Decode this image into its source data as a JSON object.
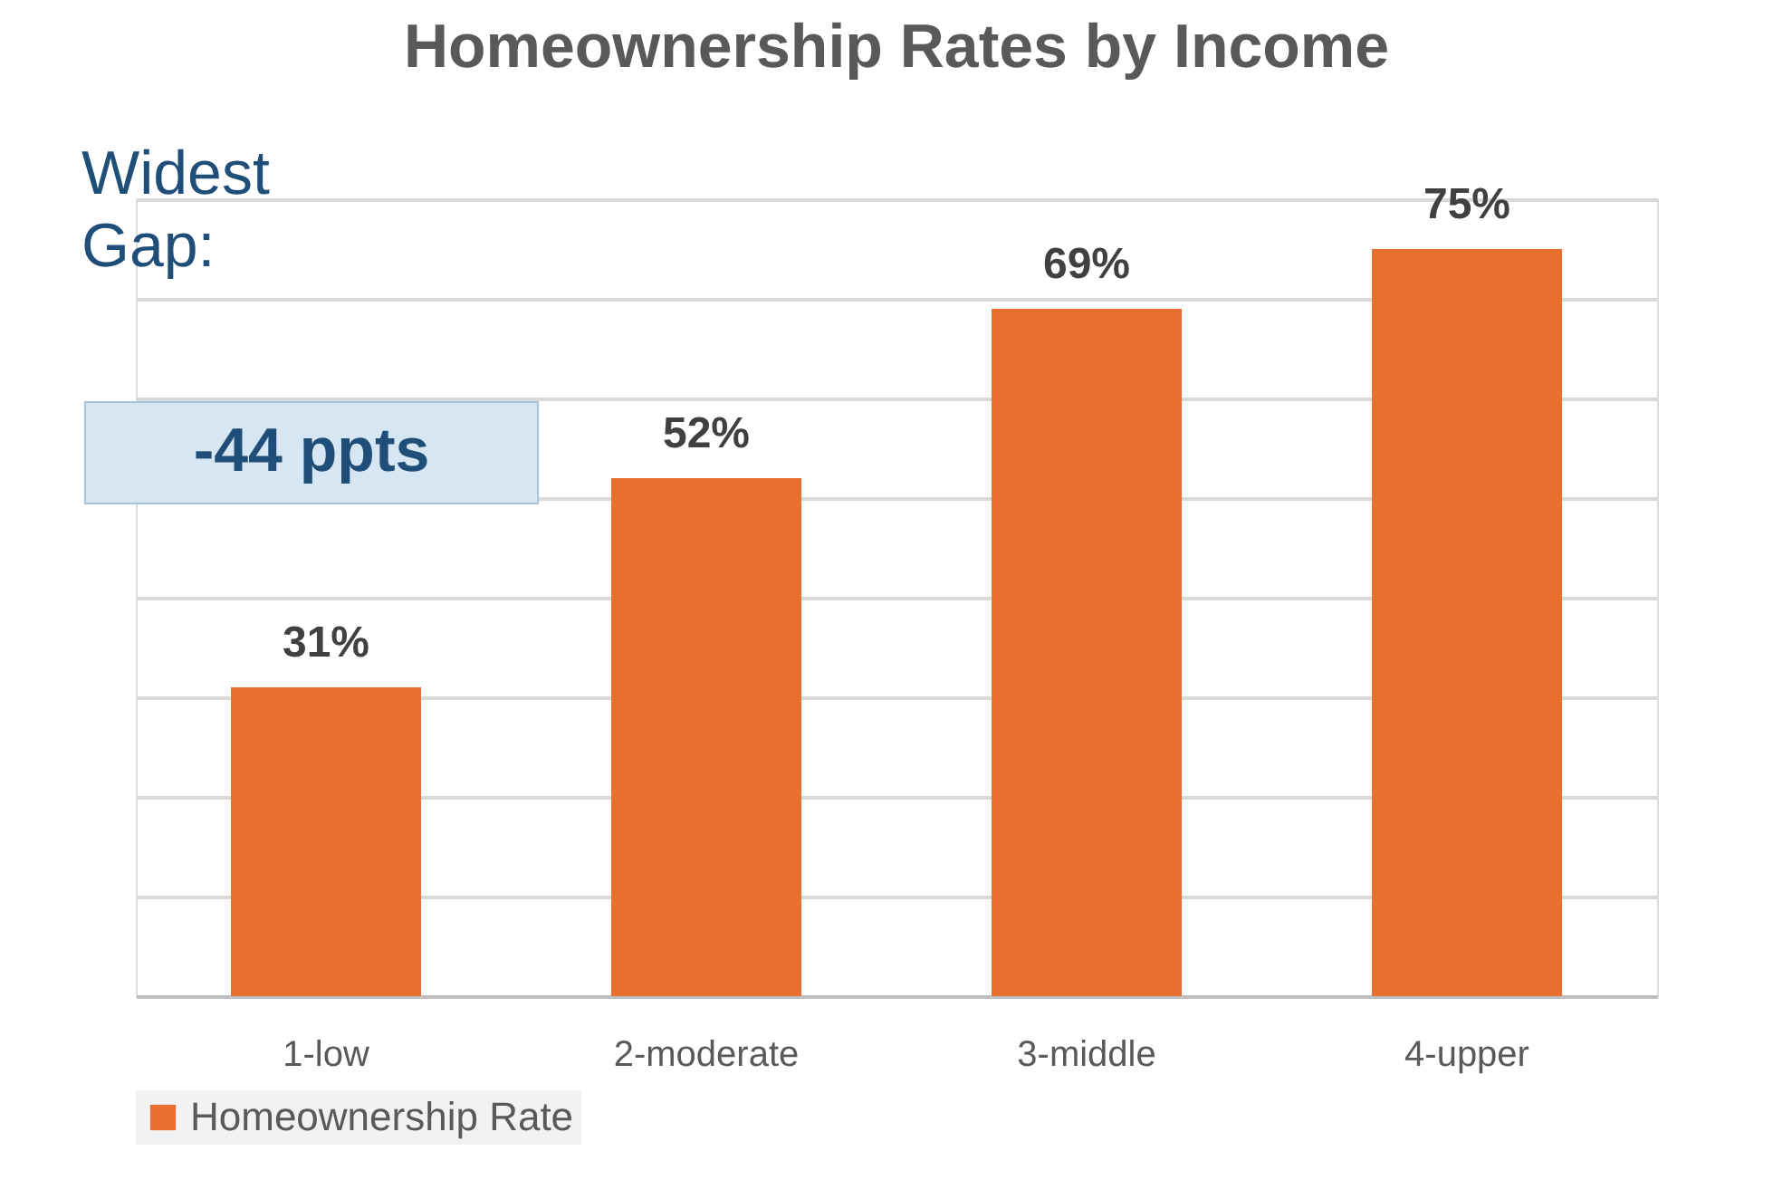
{
  "chart_data": {
    "type": "bar",
    "title": "Homeownership Rates by Income",
    "categories": [
      "1-low",
      "2-moderate",
      "3-middle",
      "4-upper"
    ],
    "series": [
      {
        "name": "Homeownership Rate",
        "color": "#e8702f",
        "values": [
          31,
          52,
          69,
          75
        ],
        "value_labels": [
          "31%",
          "52%",
          "69%",
          "75%"
        ]
      }
    ],
    "ylim": [
      0,
      80
    ],
    "yticks": [
      {
        "value": 0,
        "label": null
      },
      {
        "value": 10,
        "label": null
      },
      {
        "value": 20,
        "label": null
      },
      {
        "value": 30,
        "label": null
      },
      {
        "value": 40,
        "label": null
      },
      {
        "value": 50,
        "label": null
      },
      {
        "value": 60,
        "label": null
      },
      {
        "value": 70,
        "label": null
      },
      {
        "value": 80,
        "label": null
      }
    ],
    "tick_labels": "x",
    "grid": "y",
    "legend": "bottom",
    "annotations": [
      "Widest Gap:",
      "-44 ppts"
    ]
  }
}
